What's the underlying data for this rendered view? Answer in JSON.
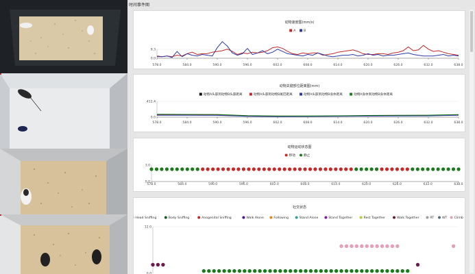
{
  "panel": {
    "title": "时间事件图"
  },
  "colors": {
    "A": "#c0282b",
    "B": "#2b3aa8",
    "moving": "#c62828",
    "still": "#1b7a1b"
  },
  "icons": [
    "mouse-icon",
    "cage-icon"
  ],
  "chart_data": [
    {
      "type": "line",
      "title": "动物速度图(mm/s)",
      "x": [
        578,
        579,
        580,
        581,
        582,
        583,
        584,
        585,
        586,
        587,
        588,
        589,
        590,
        591,
        592,
        593,
        594,
        595,
        596,
        597,
        598,
        599,
        600,
        601,
        602,
        603,
        604,
        605,
        606,
        607,
        608,
        609,
        610,
        611,
        612,
        613,
        614,
        615,
        616,
        617,
        618,
        619,
        620,
        621,
        622,
        623,
        624,
        625,
        626,
        627,
        628,
        629,
        630,
        631,
        632,
        633,
        634,
        635,
        636,
        637,
        638
      ],
      "series": [
        {
          "name": "A",
          "color": "#c0282b",
          "values": [
            3,
            2,
            3,
            2,
            4,
            3,
            6,
            8,
            5,
            6,
            6,
            8,
            9,
            10,
            12,
            9,
            5,
            7,
            6,
            8,
            7,
            8,
            10,
            14,
            15,
            13,
            9,
            6,
            5,
            7,
            6,
            7,
            7,
            4,
            5,
            6,
            8,
            9,
            10,
            11,
            9,
            6,
            5,
            5,
            6,
            6,
            5,
            7,
            8,
            10,
            15,
            10,
            11,
            17,
            12,
            9,
            10,
            8,
            6,
            5,
            4
          ]
        },
        {
          "name": "B",
          "color": "#2b3aa8",
          "values": [
            2,
            2,
            3,
            1,
            9,
            2,
            6,
            4,
            3,
            5,
            4,
            3,
            14,
            22,
            16,
            7,
            4,
            6,
            13,
            5,
            7,
            10,
            6,
            8,
            12,
            9,
            6,
            5,
            4,
            3,
            5,
            4,
            7,
            5,
            3,
            2,
            3,
            4,
            4,
            5,
            3,
            4,
            6,
            4,
            5,
            3,
            4,
            4,
            5,
            6,
            7,
            5,
            4,
            3,
            3,
            3,
            4,
            5,
            3,
            4,
            3
          ]
        }
      ],
      "xticks": [
        "578.0",
        "584.0",
        "590.0",
        "596.0",
        "602.0",
        "608.0",
        "614.0",
        "620.0",
        "626.0",
        "632.0",
        "638.0"
      ],
      "yticks": [
        "9.3",
        "0.0"
      ],
      "ylim": [
        0,
        30
      ],
      "legend_position": "top"
    },
    {
      "type": "line",
      "title": "动物关键部位距离图(mm)",
      "x": [
        578,
        584,
        590,
        596,
        602,
        608,
        614,
        620,
        626,
        632,
        638
      ],
      "series": [
        {
          "name": "动物A头部到动物B头部距离",
          "color": "#111111",
          "values": [
            60,
            58,
            56,
            30,
            22,
            25,
            28,
            34,
            38,
            42,
            55
          ]
        },
        {
          "name": "动物A头部到动物B尾巴距离",
          "color": "#c0282b",
          "values": [
            58,
            56,
            54,
            28,
            20,
            24,
            27,
            33,
            36,
            40,
            53
          ]
        },
        {
          "name": "动物A头部到动物B身体距离",
          "color": "#2b3aa8",
          "values": [
            50,
            48,
            46,
            22,
            15,
            18,
            22,
            28,
            30,
            34,
            48
          ]
        },
        {
          "name": "动物A身体到动物B身体距离",
          "color": "#1b7a1b",
          "values": [
            75,
            72,
            70,
            40,
            30,
            33,
            36,
            44,
            48,
            52,
            66
          ]
        }
      ],
      "xticks": [
        "578.0",
        "584.0",
        "590.0",
        "596.0",
        "602.0",
        "608.0",
        "614.0",
        "620.0",
        "626.0",
        "632.0",
        "638.0"
      ],
      "yticks": [
        "412.4",
        "0.0"
      ],
      "ylim": [
        0,
        412.4
      ],
      "legend_position": "top"
    },
    {
      "type": "scatter",
      "title": "动物运动状态图",
      "legend": [
        {
          "label": "移动",
          "color": "#c62828"
        },
        {
          "label": "静止",
          "color": "#1b7a1b"
        }
      ],
      "segments": [
        {
          "state": "still",
          "from": 578,
          "to": 587
        },
        {
          "state": "moving",
          "from": 588,
          "to": 617
        },
        {
          "state": "still",
          "from": 618,
          "to": 622
        },
        {
          "state": "moving",
          "from": 623,
          "to": 628
        },
        {
          "state": "still",
          "from": 629,
          "to": 638
        }
      ],
      "xticks": [
        "578.0",
        "584.0",
        "590.0",
        "596.0",
        "602.0",
        "608.0",
        "614.0",
        "620.0",
        "626.0",
        "632.0",
        "638.0"
      ],
      "yticks": [
        "3.0",
        "0.0"
      ],
      "ylim": [
        0,
        3
      ],
      "legend_position": "top"
    },
    {
      "type": "scatter",
      "title": "社交状态",
      "legend": [
        {
          "label": "Head Sniffing",
          "color": "#2b3aa8"
        },
        {
          "label": "Body Sniffing",
          "color": "#1b5e20"
        },
        {
          "label": "Anogenital Sniffing",
          "color": "#c62828"
        },
        {
          "label": "Walk Alone",
          "color": "#4a148c"
        },
        {
          "label": "Following",
          "color": "#e08a1e"
        },
        {
          "label": "Stand Alone",
          "color": "#26a69a"
        },
        {
          "label": "Stand Together",
          "color": "#7b1fa2"
        },
        {
          "label": "Rest Together",
          "color": "#c0ca33"
        },
        {
          "label": "Walk Together",
          "color": "#6d1b2c"
        },
        {
          "label": "RT",
          "color": "#9e9e9e"
        },
        {
          "label": "WT",
          "color": "#546e7a"
        },
        {
          "label": "Climb",
          "color": "#e3a0b8"
        }
      ],
      "groups": [
        {
          "color": "#6d1b4e",
          "y": 2.2,
          "from": 578.0,
          "to": 580.0,
          "step": 1.0
        },
        {
          "color": "#1b7a1b",
          "y": 0.6,
          "from": 588.0,
          "to": 628.0,
          "step": 1.0
        },
        {
          "color": "#e3a0b8",
          "y": 7.0,
          "from": 615.0,
          "to": 626.0,
          "step": 1.0
        },
        {
          "color": "#6d1b4e",
          "y": 2.2,
          "from": 630.0,
          "to": 630.0,
          "step": 1.0
        },
        {
          "color": "#e3a0b8",
          "y": 7.0,
          "from": 637.0,
          "to": 637.0,
          "step": 1.0
        }
      ],
      "yticks": [
        "12.0",
        "0.0"
      ],
      "ylim": [
        0,
        12
      ],
      "legend_position": "top"
    }
  ]
}
